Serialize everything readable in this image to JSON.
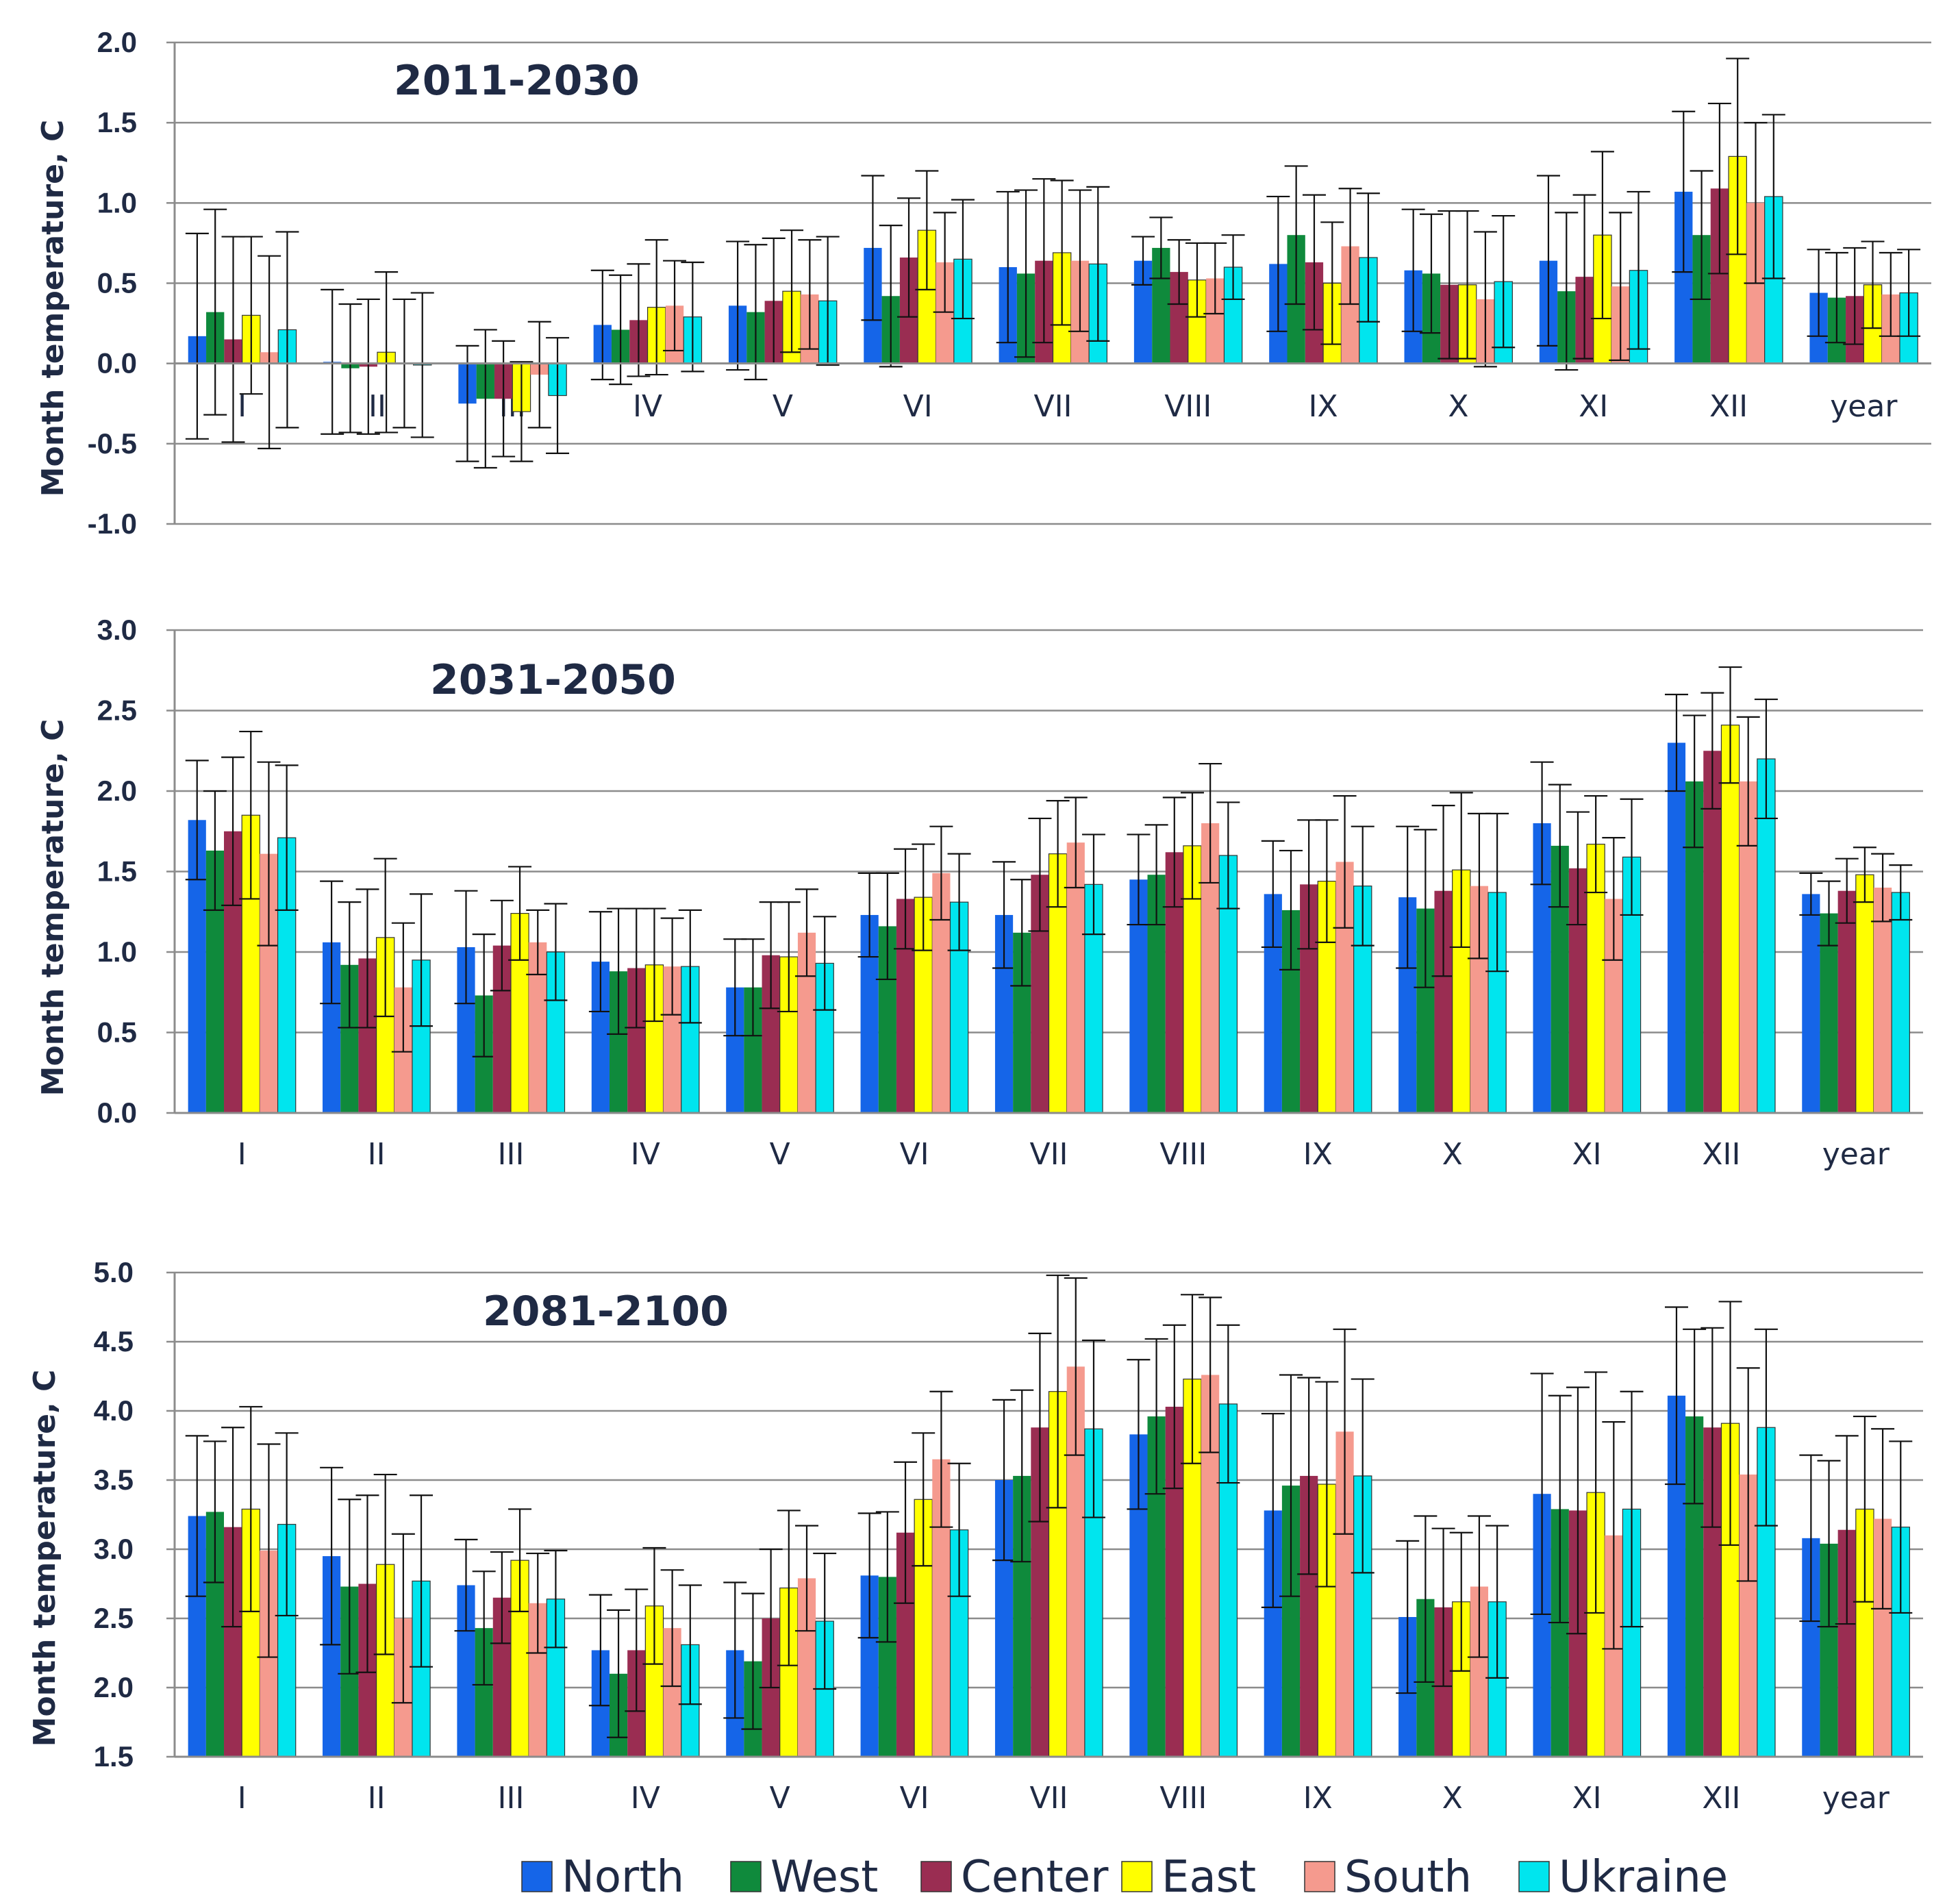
{
  "legend": [
    "North",
    "West",
    "Center",
    "East",
    "South",
    "Ukraine"
  ],
  "colors": {
    "North": "#1565e8",
    "West": "#0f8a3c",
    "Center": "#9a2d52",
    "East": "#ffff00",
    "South": "#f59a8e",
    "Ukraine": "#00e5ee"
  },
  "chart_data": [
    {
      "type": "bar",
      "title": "2011-2030",
      "ylabel": "Month temperature, C",
      "ylim": [
        -1.0,
        2.0
      ],
      "yticks": [
        "2.0",
        "1.5",
        "1.0",
        "0.5",
        "0.0",
        "-0.5",
        "-1.0"
      ],
      "categories": [
        "I",
        "II",
        "III",
        "IV",
        "V",
        "VI",
        "VII",
        "VIII",
        "IX",
        "X",
        "XI",
        "XII",
        "year"
      ],
      "grid": true,
      "series": [
        {
          "name": "North",
          "values": [
            0.17,
            0.01,
            -0.25,
            0.24,
            0.36,
            0.72,
            0.6,
            0.64,
            0.62,
            0.58,
            0.64,
            1.07,
            0.44
          ],
          "err": [
            0.64,
            0.45,
            0.36,
            0.34,
            0.4,
            0.45,
            0.47,
            0.15,
            0.42,
            0.38,
            0.53,
            0.5,
            0.27
          ]
        },
        {
          "name": "West",
          "values": [
            0.32,
            -0.03,
            -0.22,
            0.21,
            0.32,
            0.42,
            0.56,
            0.72,
            0.8,
            0.56,
            0.45,
            0.8,
            0.41
          ],
          "err": [
            0.64,
            0.4,
            0.43,
            0.34,
            0.42,
            0.44,
            0.52,
            0.19,
            0.43,
            0.37,
            0.49,
            0.4,
            0.28
          ]
        },
        {
          "name": "Center",
          "values": [
            0.15,
            -0.02,
            -0.22,
            0.27,
            0.39,
            0.66,
            0.64,
            0.57,
            0.63,
            0.49,
            0.54,
            1.09,
            0.42
          ],
          "err": [
            0.64,
            0.42,
            0.36,
            0.35,
            0.39,
            0.37,
            0.51,
            0.2,
            0.42,
            0.46,
            0.51,
            0.53,
            0.3
          ]
        },
        {
          "name": "East",
          "values": [
            0.3,
            0.07,
            -0.3,
            0.35,
            0.45,
            0.83,
            0.69,
            0.52,
            0.5,
            0.49,
            0.8,
            1.29,
            0.49
          ],
          "err": [
            0.49,
            0.5,
            0.31,
            0.42,
            0.38,
            0.37,
            0.45,
            0.23,
            0.38,
            0.46,
            0.52,
            0.61,
            0.27
          ]
        },
        {
          "name": "South",
          "values": [
            0.07,
            0.0,
            -0.07,
            0.36,
            0.43,
            0.63,
            0.64,
            0.53,
            0.73,
            0.4,
            0.48,
            1.0,
            0.43
          ],
          "err": [
            0.6,
            0.4,
            0.33,
            0.28,
            0.34,
            0.31,
            0.44,
            0.22,
            0.36,
            0.42,
            0.46,
            0.5,
            0.26
          ]
        },
        {
          "name": "Ukraine",
          "values": [
            0.21,
            -0.01,
            -0.2,
            0.29,
            0.39,
            0.65,
            0.62,
            0.6,
            0.66,
            0.51,
            0.58,
            1.04,
            0.44
          ],
          "err": [
            0.61,
            0.45,
            0.36,
            0.34,
            0.4,
            0.37,
            0.48,
            0.2,
            0.4,
            0.41,
            0.49,
            0.51,
            0.27
          ]
        }
      ]
    },
    {
      "type": "bar",
      "title": "2031-2050",
      "ylabel": "Month temperature, C",
      "ylim": [
        0.0,
        3.0
      ],
      "yticks": [
        "3.0",
        "2.5",
        "2.0",
        "1.5",
        "1.0",
        "0.5",
        "0.0"
      ],
      "categories": [
        "I",
        "II",
        "III",
        "IV",
        "V",
        "VI",
        "VII",
        "VIII",
        "IX",
        "X",
        "XI",
        "XII",
        "year"
      ],
      "grid": true,
      "series": [
        {
          "name": "North",
          "values": [
            1.82,
            1.06,
            1.03,
            0.94,
            0.78,
            1.23,
            1.23,
            1.45,
            1.36,
            1.34,
            1.8,
            2.3,
            1.36
          ],
          "err": [
            0.37,
            0.38,
            0.35,
            0.31,
            0.3,
            0.26,
            0.33,
            0.28,
            0.33,
            0.44,
            0.38,
            0.3,
            0.13
          ]
        },
        {
          "name": "West",
          "values": [
            1.63,
            0.92,
            0.73,
            0.88,
            0.78,
            1.16,
            1.12,
            1.48,
            1.26,
            1.27,
            1.66,
            2.06,
            1.24
          ],
          "err": [
            0.37,
            0.39,
            0.38,
            0.39,
            0.3,
            0.33,
            0.33,
            0.31,
            0.37,
            0.49,
            0.38,
            0.41,
            0.2
          ]
        },
        {
          "name": "Center",
          "values": [
            1.75,
            0.96,
            1.04,
            0.9,
            0.98,
            1.33,
            1.48,
            1.62,
            1.42,
            1.38,
            1.52,
            2.25,
            1.38
          ],
          "err": [
            0.46,
            0.43,
            0.28,
            0.37,
            0.33,
            0.31,
            0.35,
            0.34,
            0.4,
            0.53,
            0.35,
            0.36,
            0.2
          ]
        },
        {
          "name": "East",
          "values": [
            1.85,
            1.09,
            1.24,
            0.92,
            0.97,
            1.34,
            1.61,
            1.66,
            1.44,
            1.51,
            1.67,
            2.41,
            1.48
          ],
          "err": [
            0.52,
            0.49,
            0.29,
            0.35,
            0.34,
            0.33,
            0.33,
            0.33,
            0.38,
            0.48,
            0.3,
            0.36,
            0.17
          ]
        },
        {
          "name": "South",
          "values": [
            1.61,
            0.78,
            1.06,
            0.91,
            1.12,
            1.49,
            1.68,
            1.8,
            1.56,
            1.41,
            1.33,
            2.06,
            1.4
          ],
          "err": [
            0.57,
            0.4,
            0.2,
            0.3,
            0.27,
            0.29,
            0.28,
            0.37,
            0.41,
            0.45,
            0.38,
            0.4,
            0.21
          ]
        },
        {
          "name": "Ukraine",
          "values": [
            1.71,
            0.95,
            1.0,
            0.91,
            0.93,
            1.31,
            1.42,
            1.6,
            1.41,
            1.37,
            1.59,
            2.2,
            1.37
          ],
          "err": [
            0.45,
            0.41,
            0.3,
            0.35,
            0.29,
            0.3,
            0.31,
            0.33,
            0.37,
            0.49,
            0.36,
            0.37,
            0.17
          ]
        }
      ]
    },
    {
      "type": "bar",
      "title": "2081-2100",
      "ylabel": "Month temperature, C",
      "ylim": [
        1.5,
        5.0
      ],
      "yticks": [
        "5.0",
        "4.5",
        "4.0",
        "3.5",
        "3.0",
        "2.5",
        "2.0",
        "1.5"
      ],
      "categories": [
        "I",
        "II",
        "III",
        "IV",
        "V",
        "VI",
        "VII",
        "VIII",
        "IX",
        "X",
        "XI",
        "XII",
        "year"
      ],
      "grid": true,
      "series": [
        {
          "name": "North",
          "values": [
            3.24,
            2.95,
            2.74,
            2.27,
            2.27,
            2.81,
            3.5,
            3.83,
            3.28,
            2.51,
            3.4,
            4.11,
            3.08
          ],
          "err": [
            0.58,
            0.64,
            0.33,
            0.4,
            0.49,
            0.45,
            0.58,
            0.54,
            0.7,
            0.55,
            0.87,
            0.64,
            0.6
          ]
        },
        {
          "name": "West",
          "values": [
            3.27,
            2.73,
            2.43,
            2.1,
            2.19,
            2.8,
            3.53,
            3.96,
            3.46,
            2.64,
            3.29,
            3.96,
            3.04
          ],
          "err": [
            0.51,
            0.63,
            0.41,
            0.46,
            0.49,
            0.47,
            0.62,
            0.56,
            0.8,
            0.6,
            0.82,
            0.63,
            0.6
          ]
        },
        {
          "name": "Center",
          "values": [
            3.16,
            2.75,
            2.65,
            2.27,
            2.5,
            3.12,
            3.88,
            4.03,
            3.53,
            2.58,
            3.28,
            3.88,
            3.14
          ],
          "err": [
            0.72,
            0.64,
            0.33,
            0.44,
            0.5,
            0.51,
            0.68,
            0.59,
            0.71,
            0.57,
            0.89,
            0.72,
            0.68
          ]
        },
        {
          "name": "East",
          "values": [
            3.29,
            2.89,
            2.92,
            2.59,
            2.72,
            3.36,
            4.14,
            4.23,
            3.47,
            2.62,
            3.41,
            3.91,
            3.29
          ],
          "err": [
            0.74,
            0.65,
            0.37,
            0.42,
            0.56,
            0.48,
            0.84,
            0.61,
            0.74,
            0.5,
            0.87,
            0.88,
            0.67
          ]
        },
        {
          "name": "South",
          "values": [
            2.99,
            2.5,
            2.61,
            2.43,
            2.79,
            3.65,
            4.32,
            4.26,
            3.85,
            2.73,
            3.1,
            3.54,
            3.22
          ],
          "err": [
            0.77,
            0.61,
            0.36,
            0.42,
            0.38,
            0.49,
            0.64,
            0.56,
            0.74,
            0.51,
            0.82,
            0.77,
            0.65
          ]
        },
        {
          "name": "Ukraine",
          "values": [
            3.18,
            2.77,
            2.64,
            2.31,
            2.48,
            3.14,
            3.87,
            4.05,
            3.53,
            2.62,
            3.29,
            3.88,
            3.16
          ],
          "err": [
            0.66,
            0.62,
            0.35,
            0.43,
            0.49,
            0.48,
            0.64,
            0.57,
            0.7,
            0.55,
            0.85,
            0.71,
            0.62
          ]
        }
      ]
    }
  ]
}
